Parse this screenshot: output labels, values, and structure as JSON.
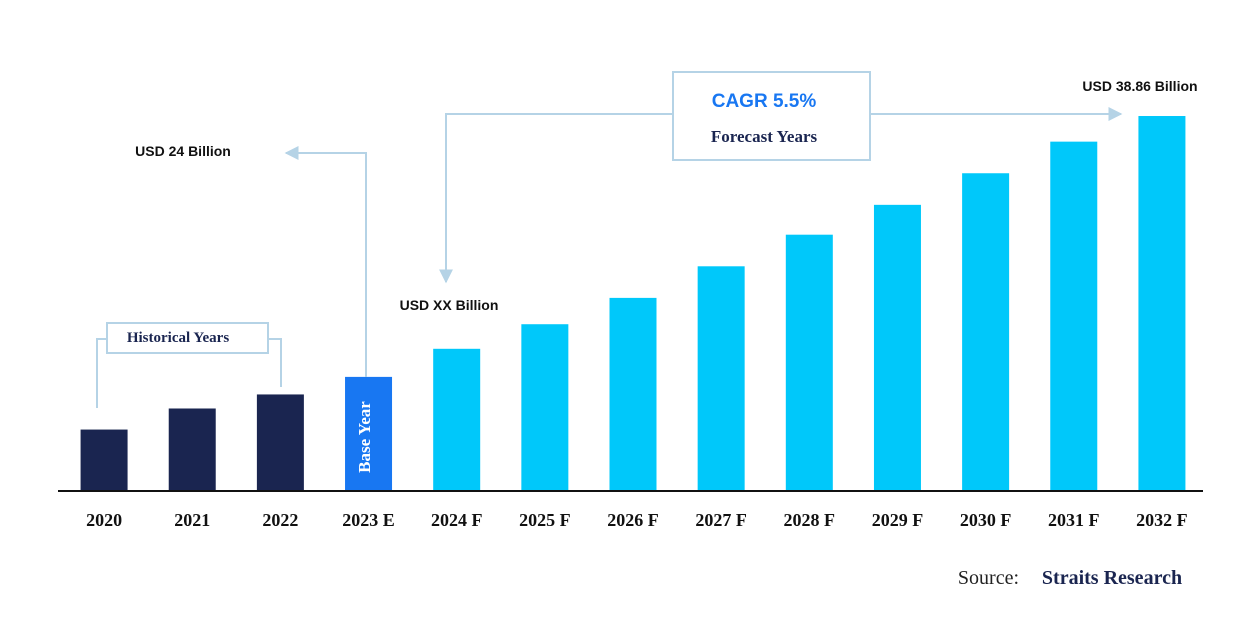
{
  "chart_data": {
    "type": "bar",
    "categories": [
      "2020",
      "2021",
      "2022",
      "2023 E",
      "2024 F",
      "2025 F",
      "2026 F",
      "2027 F",
      "2028 F",
      "2029 F",
      "2030 F",
      "2031 F",
      "2032 F"
    ],
    "values": [
      21.0,
      22.2,
      23.0,
      24,
      25.6,
      27.0,
      28.5,
      30.3,
      32.1,
      33.8,
      35.6,
      37.4,
      38.86
    ],
    "value_labels": [
      null,
      null,
      null,
      "USD 24 Billion",
      null,
      null,
      null,
      null,
      null,
      null,
      null,
      null,
      "USD 38.86 Billion"
    ],
    "colors": [
      "#1a2550",
      "#1a2550",
      "#1a2550",
      "#1877f2",
      "#00c8fa",
      "#00c8fa",
      "#00c8fa",
      "#00c8fa",
      "#00c8fa",
      "#00c8fa",
      "#00c8fa",
      "#00c8fa",
      "#00c8fa"
    ],
    "ylim": [
      17.5,
      40
    ],
    "annotations": {
      "forecast_value": "USD XX Billion",
      "cagr": "CAGR 5.5%",
      "forecast": "Forecast Years",
      "historical": "Historical Years",
      "base_year": "Base Year"
    },
    "source": {
      "label": "Source:",
      "name": "Straits Research"
    }
  }
}
